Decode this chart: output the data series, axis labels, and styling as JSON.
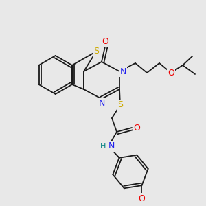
{
  "background_color": "#e8e8e8",
  "line_color": "#1a1a1a",
  "atom_colors": {
    "S": "#ccaa00",
    "N": "#2020ee",
    "O": "#ee0000",
    "H": "#008080"
  }
}
